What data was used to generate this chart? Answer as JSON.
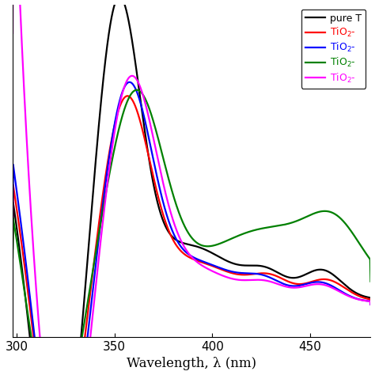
{
  "xlim": [
    298,
    481
  ],
  "ylim_min": -0.3,
  "ylim_max": 3.2,
  "xlabel": "Wavelength, λ (nm)",
  "xticks": [
    300,
    350,
    400,
    450
  ],
  "legend_labels": [
    "pure T",
    "TiO$_2$-",
    "TiO$_2$-",
    "TiO$_2$-",
    "TiO$_2$-"
  ],
  "colors": [
    "black",
    "red",
    "blue",
    "green",
    "magenta"
  ],
  "lw": 1.6,
  "figsize": [
    4.74,
    4.74
  ],
  "dpi": 100
}
